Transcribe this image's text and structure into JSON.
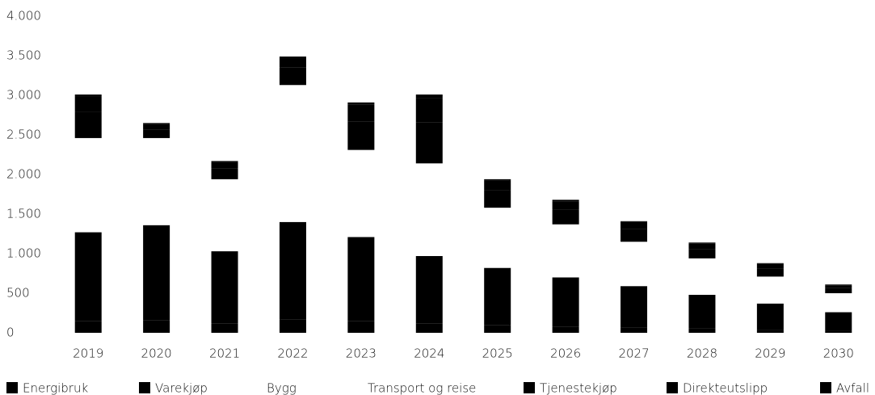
{
  "chart_data": {
    "type": "stacked-bar",
    "categories": [
      "2019",
      "2020",
      "2021",
      "2022",
      "2023",
      "2024",
      "2025",
      "2026",
      "2027",
      "2028",
      "2029",
      "2030"
    ],
    "series": [
      {
        "name": "Energibruk",
        "color": "#000000",
        "values": [
          150,
          160,
          120,
          170,
          150,
          120,
          100,
          80,
          70,
          60,
          40,
          30
        ]
      },
      {
        "name": "Varekjøp",
        "color": "#000000",
        "values": [
          1120,
          1200,
          910,
          1230,
          1060,
          850,
          720,
          620,
          520,
          420,
          330,
          230
        ]
      },
      {
        "name": "Bygg",
        "color": "#ffffff",
        "values": [
          650,
          600,
          500,
          950,
          600,
          640,
          420,
          370,
          310,
          250,
          190,
          130
        ]
      },
      {
        "name": "Transport og reise",
        "color": "#ffffff",
        "values": [
          540,
          500,
          410,
          780,
          500,
          530,
          340,
          300,
          250,
          210,
          150,
          110
        ]
      },
      {
        "name": "Tjenestekjøp",
        "color": "#000000",
        "values": [
          330,
          110,
          140,
          220,
          360,
          520,
          220,
          190,
          160,
          120,
          100,
          70
        ]
      },
      {
        "name": "Direkteutslipp",
        "color": "#000000",
        "values": [
          190,
          70,
          80,
          120,
          210,
          300,
          120,
          100,
          90,
          70,
          60,
          30
        ]
      },
      {
        "name": "Avfall",
        "color": "#000000",
        "values": [
          30,
          10,
          10,
          20,
          30,
          50,
          20,
          20,
          10,
          10,
          10,
          10
        ]
      }
    ],
    "ylim": [
      0,
      4000
    ],
    "yticks": [
      0,
      500,
      {
        "value": 1000,
        "label": "1.000"
      },
      {
        "value": 1500,
        "label": "1.500"
      },
      {
        "value": 2000,
        "label": "2.000"
      },
      {
        "value": 2500,
        "label": "2.500"
      },
      {
        "value": 3000,
        "label": "3.000"
      },
      {
        "value": 3500,
        "label": "3.500"
      },
      {
        "value": 4000,
        "label": "4.000"
      }
    ],
    "legend": "bottom"
  }
}
